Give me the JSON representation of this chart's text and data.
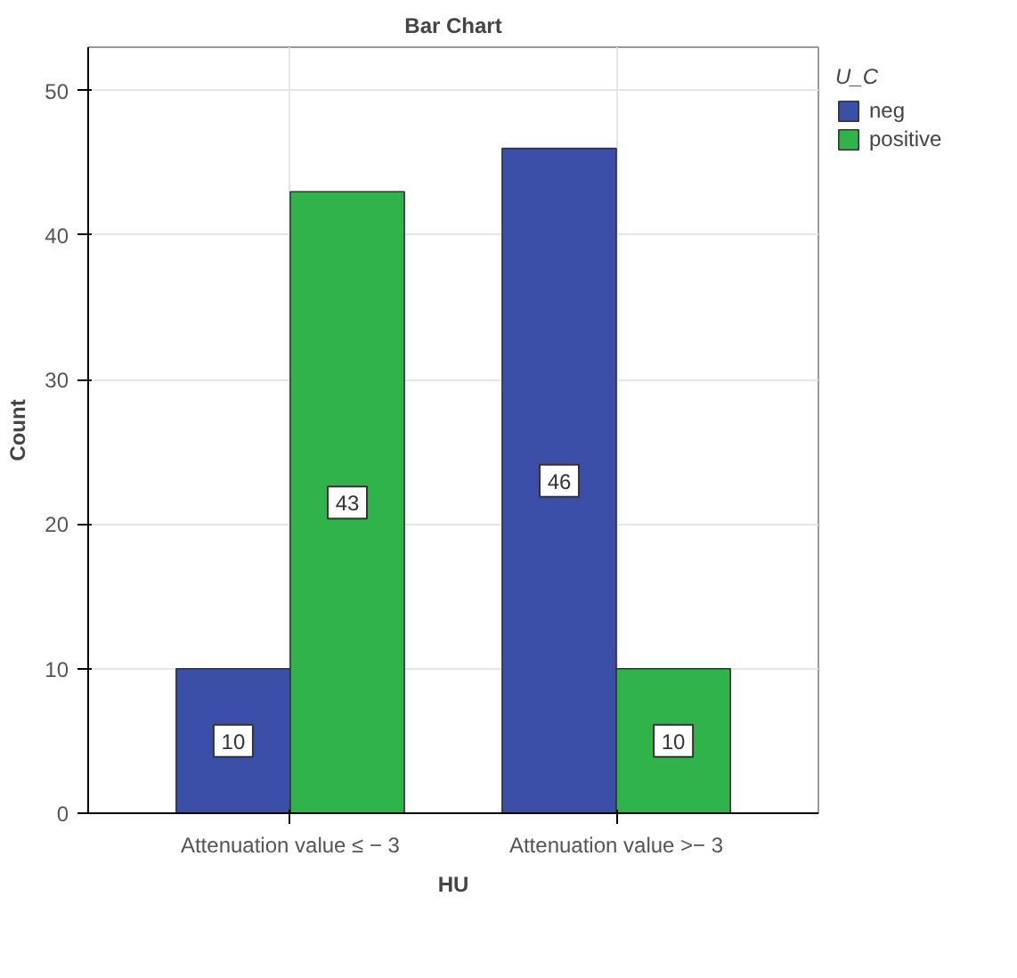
{
  "chart_data": {
    "type": "bar",
    "title": "Bar Chart",
    "xlabel": "HU",
    "ylabel": "Count",
    "legend_title": "U_C",
    "categories": [
      "Attenuation value ≤ − 3",
      "Attenuation value >− 3"
    ],
    "series": [
      {
        "name": "neg",
        "color": "#3b4fa8",
        "values": [
          10,
          46
        ]
      },
      {
        "name": "positive",
        "color": "#2fb34a",
        "values": [
          43,
          10
        ]
      }
    ],
    "ylim": [
      0,
      53
    ],
    "yticks": [
      0,
      10,
      20,
      30,
      40,
      50
    ],
    "grid": true,
    "legend": "right",
    "data_labels": true
  }
}
